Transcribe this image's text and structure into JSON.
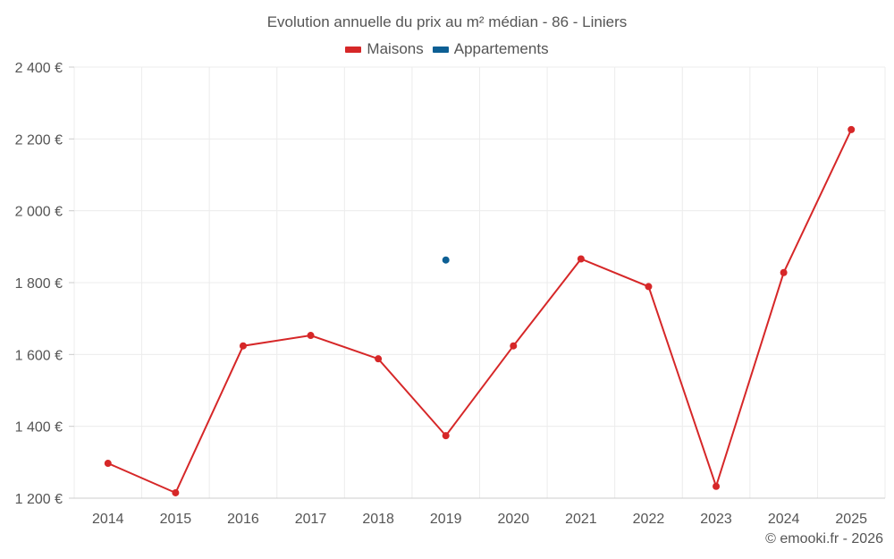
{
  "chart_data": {
    "type": "line",
    "title": "Evolution annuelle du prix au m² médian - 86 - Liniers",
    "xlabel": "",
    "ylabel": "",
    "categories": [
      "2014",
      "2015",
      "2016",
      "2017",
      "2018",
      "2019",
      "2020",
      "2021",
      "2022",
      "2023",
      "2024",
      "2025"
    ],
    "ylim": [
      1200,
      2400
    ],
    "yticks": [
      1200,
      1400,
      1600,
      1800,
      2000,
      2200,
      2400
    ],
    "ytick_labels": [
      "1 200 €",
      "1 400 €",
      "1 600 €",
      "1 800 €",
      "2 000 €",
      "2 200 €",
      "2 400 €"
    ],
    "grid": true,
    "legend_position": "top-center",
    "series": [
      {
        "name": "Maisons",
        "color": "#d62728",
        "values": [
          1297,
          1215,
          1624,
          1653,
          1588,
          1374,
          1624,
          1866,
          1789,
          1233,
          1828,
          2226
        ]
      },
      {
        "name": "Appartements",
        "color": "#0d5f94",
        "values": [
          null,
          null,
          null,
          null,
          null,
          1863,
          null,
          null,
          null,
          null,
          null,
          null
        ]
      }
    ]
  },
  "footer": {
    "copyright": "© emooki.fr - 2026"
  }
}
